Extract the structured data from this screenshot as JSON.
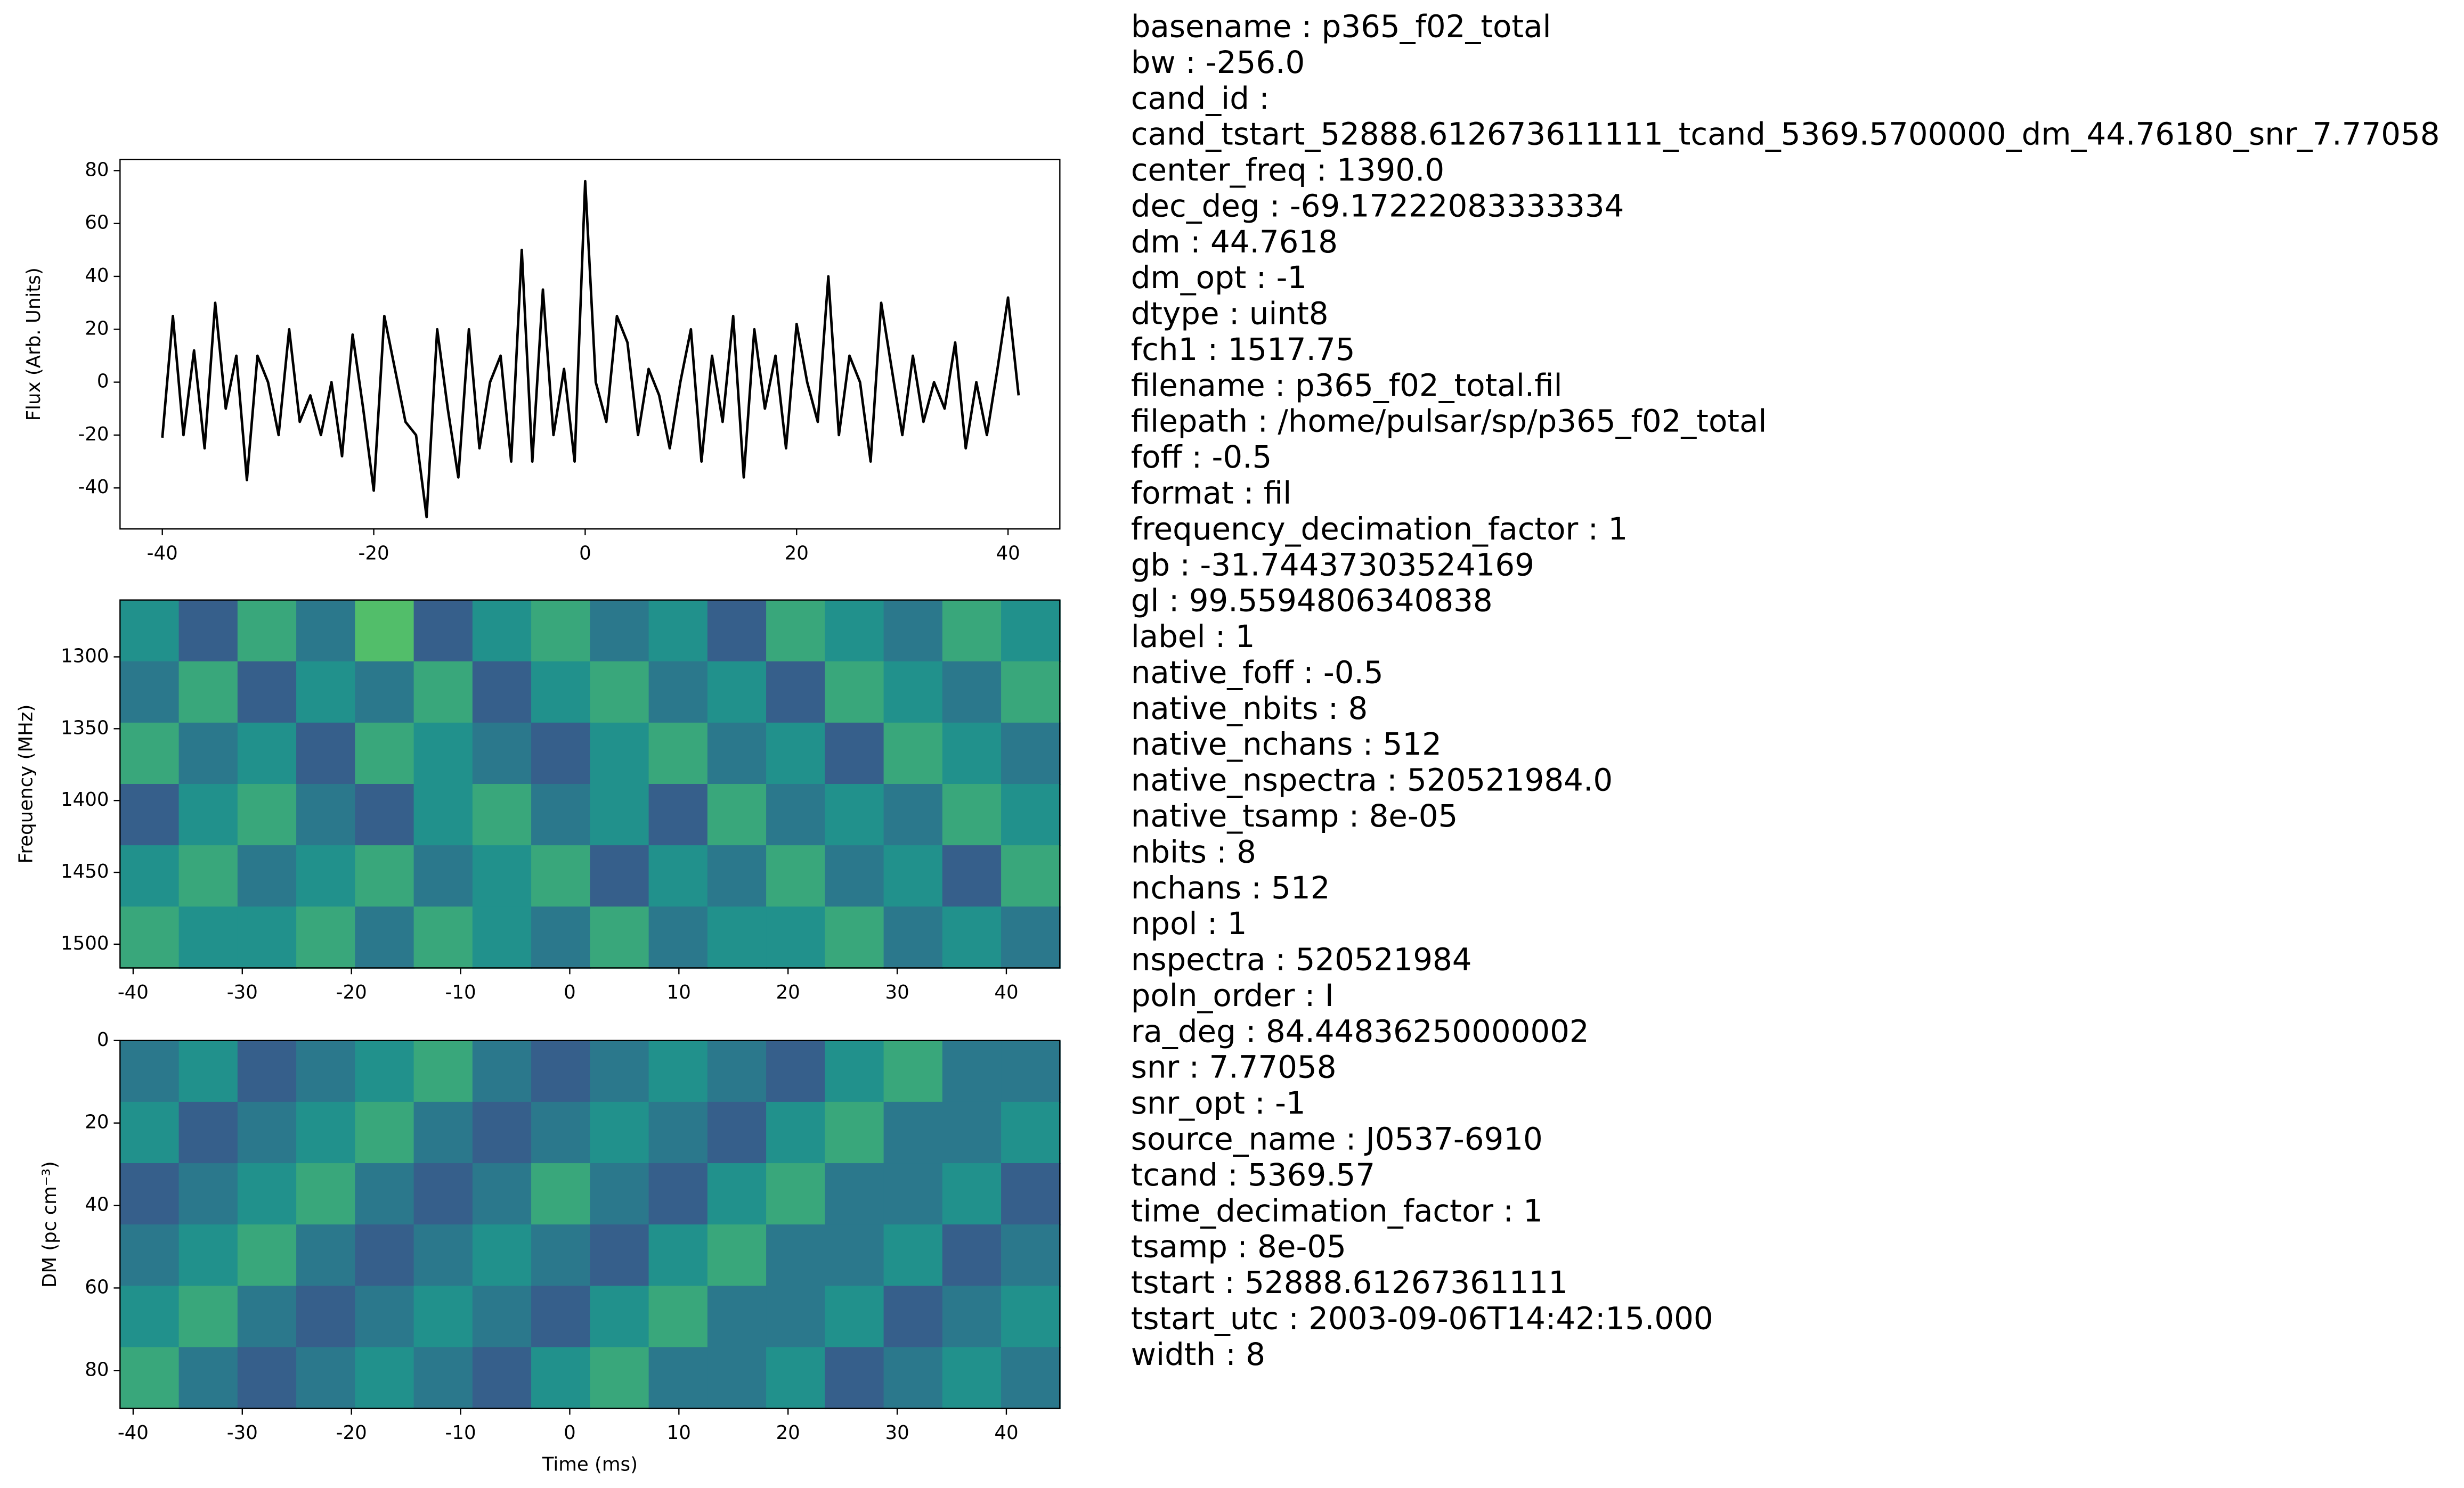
{
  "chart_data": [
    {
      "type": "line",
      "ylabel": "Flux (Arb. Units)",
      "color": "#000000",
      "x": [
        -40,
        -39,
        -38,
        -37,
        -36,
        -35,
        -34,
        -33,
        -32,
        -31,
        -30,
        -29,
        -28,
        -27,
        -26,
        -25,
        -24,
        -23,
        -22,
        -21,
        -20,
        -19,
        -18,
        -17,
        -16,
        -15,
        -14,
        -13,
        -12,
        -11,
        -10,
        -9,
        -8,
        -7,
        -6,
        -5,
        -4,
        -3,
        -2,
        -1,
        0,
        1,
        2,
        3,
        4,
        5,
        6,
        7,
        8,
        9,
        10,
        11,
        12,
        13,
        14,
        15,
        16,
        17,
        18,
        19,
        20,
        21,
        22,
        23,
        24,
        25,
        26,
        27,
        28,
        29,
        30,
        31,
        32,
        33,
        34,
        35,
        36,
        37,
        38,
        39,
        40,
        41
      ],
      "values": [
        -21,
        25,
        -20,
        12,
        -25,
        30,
        -10,
        10,
        -37,
        10,
        0,
        -20,
        20,
        -15,
        -5,
        -20,
        0,
        -28,
        18,
        -10,
        -41,
        25,
        5,
        -15,
        -20,
        -51,
        20,
        -10,
        -36,
        20,
        -25,
        0,
        10,
        -30,
        50,
        -30,
        35,
        -20,
        5,
        -30,
        76,
        0,
        -15,
        25,
        15,
        -20,
        5,
        -5,
        -25,
        0,
        20,
        -30,
        10,
        -15,
        25,
        -36,
        20,
        -10,
        10,
        -25,
        22,
        0,
        -15,
        40,
        -20,
        10,
        0,
        -30,
        30,
        5,
        -20,
        10,
        -15,
        0,
        -10,
        15,
        -25,
        0,
        -20,
        5,
        32,
        -5
      ],
      "xlim": [
        -44,
        44.9
      ],
      "xticks": [
        -40,
        -20,
        0,
        20,
        40
      ],
      "ylim": [
        -55.5,
        84.2
      ],
      "yticks": [
        -40,
        -20,
        0,
        20,
        40,
        60,
        80
      ]
    },
    {
      "type": "heatmap",
      "ylabel": "Frequency (MHz)",
      "colormap": "viridis",
      "z": [
        [
          0.5,
          0.3,
          0.6,
          0.4,
          0.7,
          0.3,
          0.5,
          0.6,
          0.4,
          0.5,
          0.3,
          0.6,
          0.5,
          0.4,
          0.6,
          0.5
        ],
        [
          0.4,
          0.6,
          0.3,
          0.5,
          0.4,
          0.6,
          0.3,
          0.5,
          0.6,
          0.4,
          0.5,
          0.3,
          0.6,
          0.5,
          0.4,
          0.6
        ],
        [
          0.6,
          0.4,
          0.5,
          0.3,
          0.6,
          0.5,
          0.4,
          0.3,
          0.5,
          0.6,
          0.4,
          0.5,
          0.3,
          0.6,
          0.5,
          0.4
        ],
        [
          0.3,
          0.5,
          0.6,
          0.4,
          0.3,
          0.5,
          0.6,
          0.4,
          0.5,
          0.3,
          0.6,
          0.4,
          0.5,
          0.4,
          0.6,
          0.5
        ],
        [
          0.5,
          0.6,
          0.4,
          0.5,
          0.6,
          0.4,
          0.5,
          0.6,
          0.3,
          0.5,
          0.4,
          0.6,
          0.4,
          0.5,
          0.3,
          0.6
        ],
        [
          0.6,
          0.5,
          0.5,
          0.6,
          0.4,
          0.6,
          0.5,
          0.4,
          0.6,
          0.4,
          0.5,
          0.5,
          0.6,
          0.4,
          0.5,
          0.4
        ]
      ],
      "xlim": [
        -41.2,
        44.9
      ],
      "xticks": [
        -40,
        -30,
        -20,
        -10,
        0,
        10,
        20,
        30,
        40
      ],
      "ylim": [
        1516.5,
        1260.4
      ],
      "yticks": [
        1300,
        1350,
        1400,
        1450,
        1500
      ]
    },
    {
      "type": "heatmap",
      "xlabel": "Time (ms)",
      "ylabel": "DM (pc cm⁻³)",
      "colormap": "viridis",
      "z": [
        [
          0.4,
          0.5,
          0.3,
          0.4,
          0.5,
          0.6,
          0.4,
          0.3,
          0.4,
          0.5,
          0.4,
          0.3,
          0.5,
          0.6,
          0.4,
          0.4
        ],
        [
          0.5,
          0.3,
          0.4,
          0.5,
          0.6,
          0.4,
          0.3,
          0.4,
          0.5,
          0.4,
          0.3,
          0.5,
          0.6,
          0.4,
          0.4,
          0.5
        ],
        [
          0.3,
          0.4,
          0.5,
          0.6,
          0.4,
          0.3,
          0.4,
          0.6,
          0.4,
          0.3,
          0.5,
          0.6,
          0.4,
          0.4,
          0.5,
          0.3
        ],
        [
          0.4,
          0.5,
          0.6,
          0.4,
          0.3,
          0.4,
          0.5,
          0.4,
          0.3,
          0.5,
          0.6,
          0.4,
          0.4,
          0.5,
          0.3,
          0.4
        ],
        [
          0.5,
          0.6,
          0.4,
          0.3,
          0.4,
          0.5,
          0.4,
          0.3,
          0.5,
          0.6,
          0.4,
          0.4,
          0.5,
          0.3,
          0.4,
          0.5
        ],
        [
          0.6,
          0.4,
          0.3,
          0.4,
          0.5,
          0.4,
          0.3,
          0.5,
          0.6,
          0.4,
          0.4,
          0.5,
          0.3,
          0.4,
          0.5,
          0.4
        ]
      ],
      "xlim": [
        -41.2,
        44.9
      ],
      "xticks": [
        -40,
        -30,
        -20,
        -10,
        0,
        10,
        20,
        30,
        40
      ],
      "ylim": [
        89.2,
        0
      ],
      "yticks": [
        0,
        20,
        40,
        60,
        80
      ]
    }
  ],
  "metadata": [
    "basename : p365_f02_total",
    "bw : -256.0",
    "cand_id :",
    "cand_tstart_52888.612673611111_tcand_5369.5700000_dm_44.76180_snr_7.77058",
    "center_freq : 1390.0",
    "dec_deg : -69.17222083333334",
    "dm : 44.7618",
    "dm_opt : -1",
    "dtype : uint8",
    "fch1 : 1517.75",
    "filename : p365_f02_total.fil",
    "filepath : /home/pulsar/sp/p365_f02_total",
    "foff : -0.5",
    "format : fil",
    "frequency_decimation_factor : 1",
    "gb : -31.74437303524169",
    "gl : 99.5594806340838",
    "label : 1",
    "native_foff : -0.5",
    "native_nbits : 8",
    "native_nchans : 512",
    "native_nspectra : 520521984.0",
    "native_tsamp : 8e-05",
    "nbits : 8",
    "nchans : 512",
    "npol : 1",
    "nspectra : 520521984",
    "poln_order : I",
    "ra_deg : 84.44836250000002",
    "snr : 7.77058",
    "snr_opt : -1",
    "source_name : J0537-6910",
    "tcand : 5369.57",
    "time_decimation_factor : 1",
    "tsamp : 8e-05",
    "tstart : 52888.61267361111",
    "tstart_utc : 2003-09-06T14:42:15.000",
    "width : 8"
  ]
}
